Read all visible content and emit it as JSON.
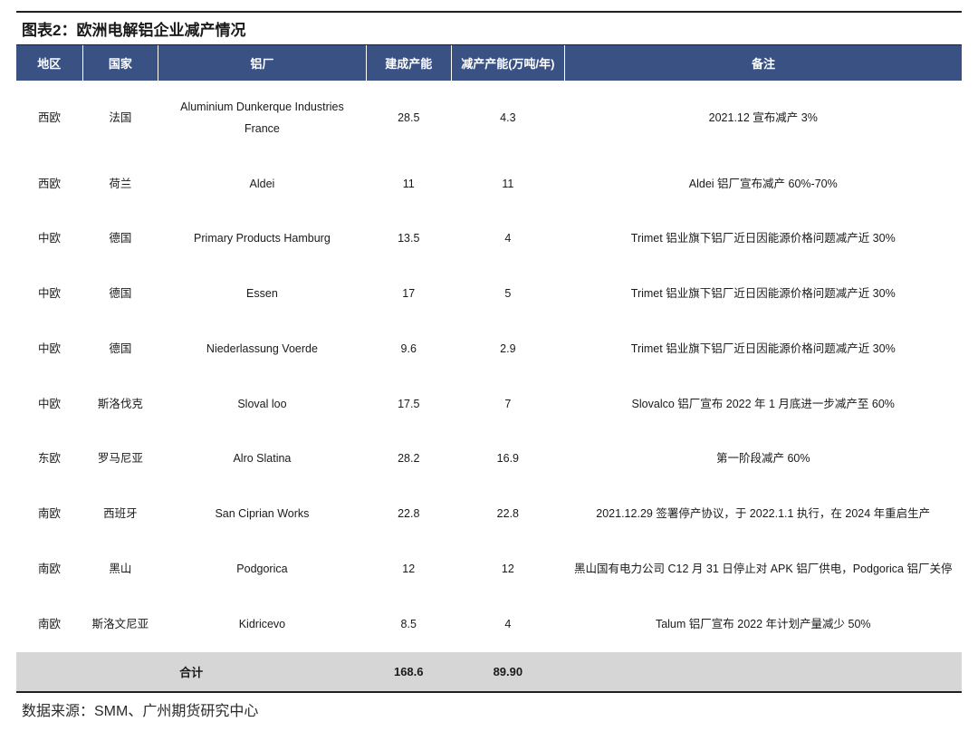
{
  "title": "图表2：欧洲电解铝企业减产情况",
  "source": "数据来源：SMM、广州期货研究中心",
  "table": {
    "header_bg": "#3a5283",
    "header_fg": "#ffffff",
    "footer_bg": "#d6d6d6",
    "border_color": "#202020",
    "columns": [
      {
        "key": "region",
        "label": "地区"
      },
      {
        "key": "country",
        "label": "国家"
      },
      {
        "key": "plant",
        "label": "铝厂"
      },
      {
        "key": "capacity",
        "label": "建成产能"
      },
      {
        "key": "reduction",
        "label": "减产产能(万吨/年)"
      },
      {
        "key": "note",
        "label": "备注"
      }
    ],
    "rows": [
      {
        "region": "西欧",
        "country": "法国",
        "plant": "Aluminium Dunkerque Industries France",
        "capacity": "28.5",
        "reduction": "4.3",
        "note": "2021.12 宣布减产 3%"
      },
      {
        "region": "西欧",
        "country": "荷兰",
        "plant": "Aldei",
        "capacity": "11",
        "reduction": "11",
        "note": "Aldei 铝厂宣布减产 60%-70%"
      },
      {
        "region": "中欧",
        "country": "德国",
        "plant": "Primary Products Hamburg",
        "capacity": "13.5",
        "reduction": "4",
        "note": "Trimet 铝业旗下铝厂近日因能源价格问题减产近 30%"
      },
      {
        "region": "中欧",
        "country": "德国",
        "plant": "Essen",
        "capacity": "17",
        "reduction": "5",
        "note": "Trimet 铝业旗下铝厂近日因能源价格问题减产近 30%"
      },
      {
        "region": "中欧",
        "country": "德国",
        "plant": "Niederlassung Voerde",
        "capacity": "9.6",
        "reduction": "2.9",
        "note": "Trimet 铝业旗下铝厂近日因能源价格问题减产近 30%"
      },
      {
        "region": "中欧",
        "country": "斯洛伐克",
        "plant": "Sloval loo",
        "capacity": "17.5",
        "reduction": "7",
        "note": "Slovalco 铝厂宣布 2022 年 1 月底进一步减产至 60%"
      },
      {
        "region": "东欧",
        "country": "罗马尼亚",
        "plant": "Alro Slatina",
        "capacity": "28.2",
        "reduction": "16.9",
        "note": "第一阶段减产 60%"
      },
      {
        "region": "南欧",
        "country": "西班牙",
        "plant": "San Ciprian Works",
        "capacity": "22.8",
        "reduction": "22.8",
        "note": "2021.12.29 签署停产协议，于 2022.1.1 执行，在 2024 年重启生产"
      },
      {
        "region": "南欧",
        "country": "黑山",
        "plant": "Podgorica",
        "capacity": "12",
        "reduction": "12",
        "note": "黑山国有电力公司 C12 月 31 日停止对 APK 铝厂供电，Podgorica 铝厂关停"
      },
      {
        "region": "南欧",
        "country": "斯洛文尼亚",
        "plant": "Kidricevo",
        "capacity": "8.5",
        "reduction": "4",
        "note": "Talum 铝厂宣布 2022 年计划产量减少 50%"
      }
    ],
    "footer": {
      "label": "合计",
      "capacity_total": "168.6",
      "reduction_total": "89.90"
    }
  }
}
